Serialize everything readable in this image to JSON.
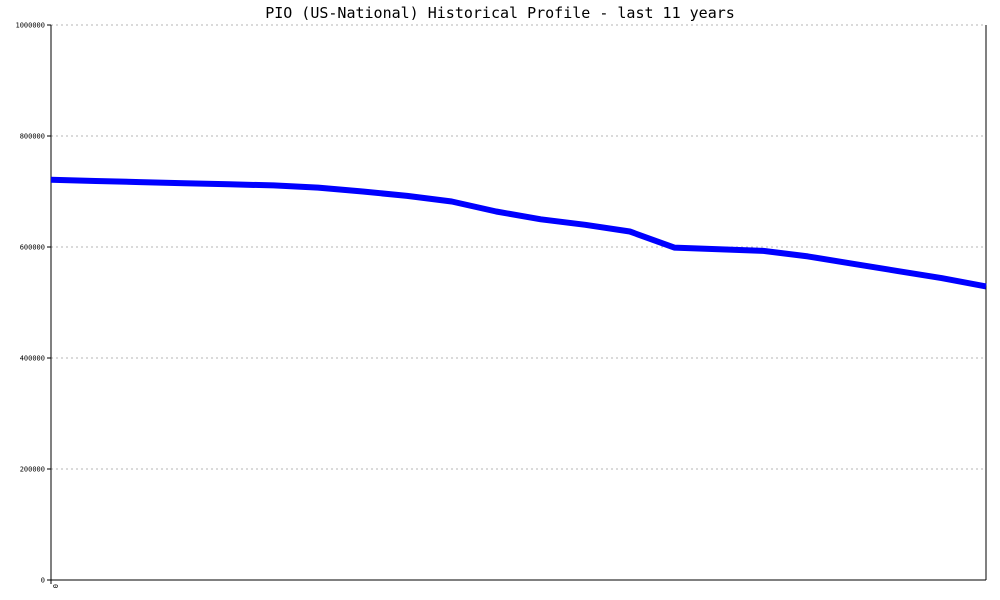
{
  "chart_data": {
    "type": "line",
    "title": "PIO (US-National) Historical Profile - last 11 years",
    "xlabel": "",
    "ylabel": "",
    "ylim": [
      0,
      1000000
    ],
    "grid": true,
    "legend": "none",
    "x_tick_labels": [
      "0"
    ],
    "y_ticks": [
      0,
      200000,
      400000,
      600000,
      800000,
      1000000
    ],
    "y_tick_labels": [
      "0",
      "200000",
      "400000",
      "600000",
      "800000",
      "1000000"
    ],
    "series": [
      {
        "color": "#0000ff",
        "x": [
          0,
          1,
          2,
          3,
          4,
          5,
          6,
          7,
          8,
          9,
          10,
          11,
          12,
          13,
          14,
          15,
          16,
          17,
          18,
          19,
          20,
          21
        ],
        "y": [
          721000,
          719000,
          717000,
          715000,
          713000,
          711000,
          707000,
          700000,
          692000,
          682000,
          664000,
          650000,
          640000,
          628000,
          599000,
          596000,
          593000,
          583000,
          570000,
          557000,
          544000,
          529000
        ]
      }
    ]
  }
}
